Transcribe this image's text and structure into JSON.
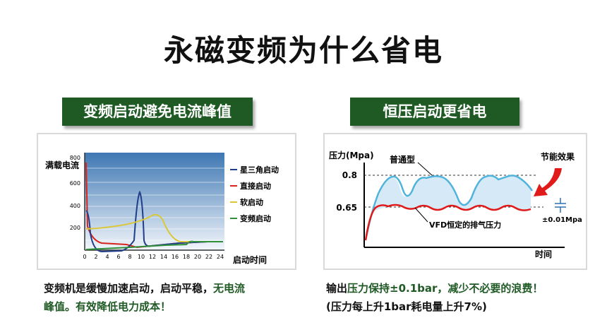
{
  "title": "永磁变频为什么省电",
  "left": {
    "banner": "变频启动避免电流峰值",
    "chart": {
      "ylabel": "满载电流",
      "xlabel": "启动时间",
      "yticks": [
        "800",
        "600",
        "400",
        "200"
      ],
      "xticks": [
        "0",
        "2",
        "4",
        "6",
        "8",
        "10",
        "12",
        "14",
        "16",
        "18",
        "20",
        "22",
        "24"
      ],
      "legend": [
        {
          "label": "星三角启动",
          "color": "#1f3d8a"
        },
        {
          "label": "直接启动",
          "color": "#d8251c"
        },
        {
          "label": "软启动",
          "color": "#d9c83a"
        },
        {
          "label": "变频启动",
          "color": "#2f8f3a"
        }
      ]
    },
    "caption": {
      "part1": "变频机是缓慢加速启动，启动平稳，",
      "part2": "无电流",
      "part3": "峰值。有效降低电力成本！"
    }
  },
  "right": {
    "banner": "恒压启动更省电",
    "chart": {
      "ylabel": "压力(Mpa)",
      "xlabel": "时间",
      "level_high": "0.8",
      "level_low": "0.65",
      "label_normal": "普通型",
      "label_vfd": "VFD恒定的排气压力",
      "label_saving": "节能效果",
      "label_tolerance": "±0.01Mpa",
      "colors": {
        "normal": "#4fb3dc",
        "vfd": "#e11a1a",
        "arrow": "#e11a1a"
      }
    },
    "caption": {
      "part1": "输出",
      "part2": "压力保持±0.1bar，减少不必要的浪费！",
      "part3": "(压力每上升1bar耗电量上升7%)"
    }
  }
}
